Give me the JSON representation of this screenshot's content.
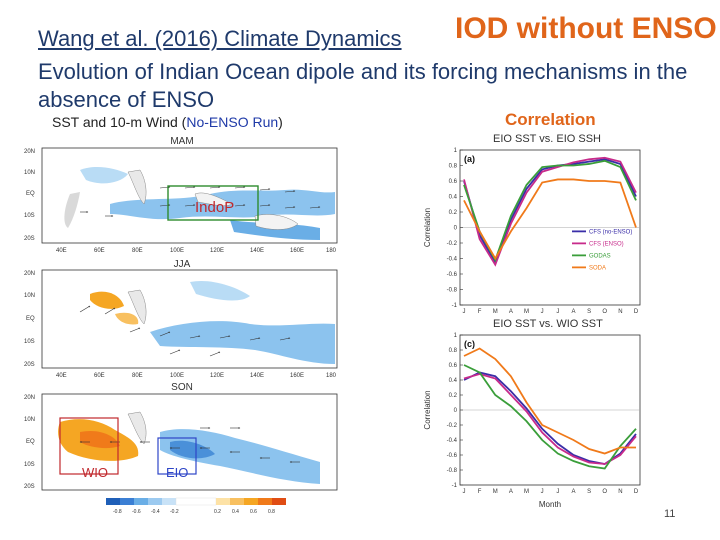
{
  "header": {
    "citation": "Wang et al. (2016) Climate Dynamics",
    "headline": "IOD without ENSO",
    "title": "Evolution of Indian Ocean dipole and its forcing mechanisms in the absence of ENSO"
  },
  "left_panel": {
    "label_prefix": "SST and 10-m Wind (",
    "label_highlight": "No-ENSO Run",
    "label_suffix": ")",
    "maps": [
      {
        "season": "MAM"
      },
      {
        "season": "JJA"
      },
      {
        "season": "SON"
      }
    ],
    "lon_ticks": [
      "40E",
      "60E",
      "80E",
      "100E",
      "120E",
      "140E",
      "160E",
      "180"
    ],
    "lat_ticks": [
      "20N",
      "10N",
      "EQ",
      "10S",
      "20S"
    ],
    "boxes": {
      "indop": "IndoP",
      "wio": "WIO",
      "eio": "EIO"
    },
    "colorbar_ticks": [
      "-0.8",
      "-0.6",
      "-0.4",
      "-0.2",
      "0.2",
      "0.4",
      "0.6",
      "0.8"
    ],
    "colors": {
      "warm": "#f5a623",
      "cool": "#6aaee6",
      "land": "#ffffff"
    }
  },
  "right_panel": {
    "heading": "Correlation",
    "xlabel": "Month",
    "ylabel": "Correlation"
  },
  "chart_data": [
    {
      "type": "line",
      "panel_label": "(a)",
      "title": "EIO SST vs. EIO SSH",
      "xlabel": "",
      "ylabel": "Correlation",
      "categories": [
        "J",
        "F",
        "M",
        "A",
        "M",
        "J",
        "J",
        "A",
        "S",
        "O",
        "N",
        "D"
      ],
      "ylim": [
        -1,
        1
      ],
      "yticks": [
        -1,
        -0.8,
        -0.6,
        -0.4,
        -0.2,
        0,
        0.2,
        0.4,
        0.6,
        0.8,
        1
      ],
      "legend_position": "bottom-right",
      "series": [
        {
          "name": "CFS (no-ENSO)",
          "color": "#3a2ea8",
          "values": [
            0.6,
            -0.1,
            -0.45,
            0.1,
            0.5,
            0.75,
            0.8,
            0.82,
            0.85,
            0.88,
            0.82,
            0.4
          ]
        },
        {
          "name": "CFS (ENSO)",
          "color": "#c72b8b",
          "values": [
            0.62,
            -0.15,
            -0.48,
            0.05,
            0.45,
            0.72,
            0.78,
            0.84,
            0.88,
            0.9,
            0.85,
            0.45
          ]
        },
        {
          "name": "GODAS",
          "color": "#3a9e3a",
          "values": [
            0.55,
            -0.05,
            -0.42,
            0.15,
            0.55,
            0.78,
            0.8,
            0.8,
            0.82,
            0.86,
            0.78,
            0.35
          ]
        },
        {
          "name": "SODA",
          "color": "#f07a1a",
          "values": [
            0.35,
            -0.05,
            -0.4,
            -0.05,
            0.25,
            0.58,
            0.62,
            0.62,
            0.6,
            0.6,
            0.58,
            0.0
          ]
        }
      ]
    },
    {
      "type": "line",
      "panel_label": "(c)",
      "title": "EIO SST vs. WIO SST",
      "xlabel": "Month",
      "ylabel": "Correlation",
      "categories": [
        "J",
        "F",
        "M",
        "A",
        "M",
        "J",
        "J",
        "A",
        "S",
        "O",
        "N",
        "D"
      ],
      "ylim": [
        -1,
        1
      ],
      "yticks": [
        -1,
        -0.8,
        -0.6,
        -0.4,
        -0.2,
        0,
        0.2,
        0.4,
        0.6,
        0.8,
        1
      ],
      "series": [
        {
          "name": "CFS (no-ENSO)",
          "color": "#3a2ea8",
          "values": [
            0.4,
            0.5,
            0.45,
            0.25,
            0.02,
            -0.25,
            -0.45,
            -0.6,
            -0.68,
            -0.72,
            -0.58,
            -0.32
          ]
        },
        {
          "name": "CFS (ENSO)",
          "color": "#c72b8b",
          "values": [
            0.42,
            0.48,
            0.42,
            0.2,
            -0.02,
            -0.3,
            -0.5,
            -0.62,
            -0.7,
            -0.72,
            -0.6,
            -0.35
          ]
        },
        {
          "name": "GODAS",
          "color": "#3a9e3a",
          "values": [
            0.6,
            0.5,
            0.2,
            0.05,
            -0.15,
            -0.4,
            -0.58,
            -0.68,
            -0.75,
            -0.78,
            -0.48,
            -0.25
          ]
        },
        {
          "name": "SODA",
          "color": "#f07a1a",
          "values": [
            0.72,
            0.82,
            0.68,
            0.45,
            0.1,
            -0.2,
            -0.3,
            -0.4,
            -0.52,
            -0.58,
            -0.5,
            -0.5
          ]
        }
      ]
    }
  ],
  "footer": {
    "page_number": "11"
  }
}
